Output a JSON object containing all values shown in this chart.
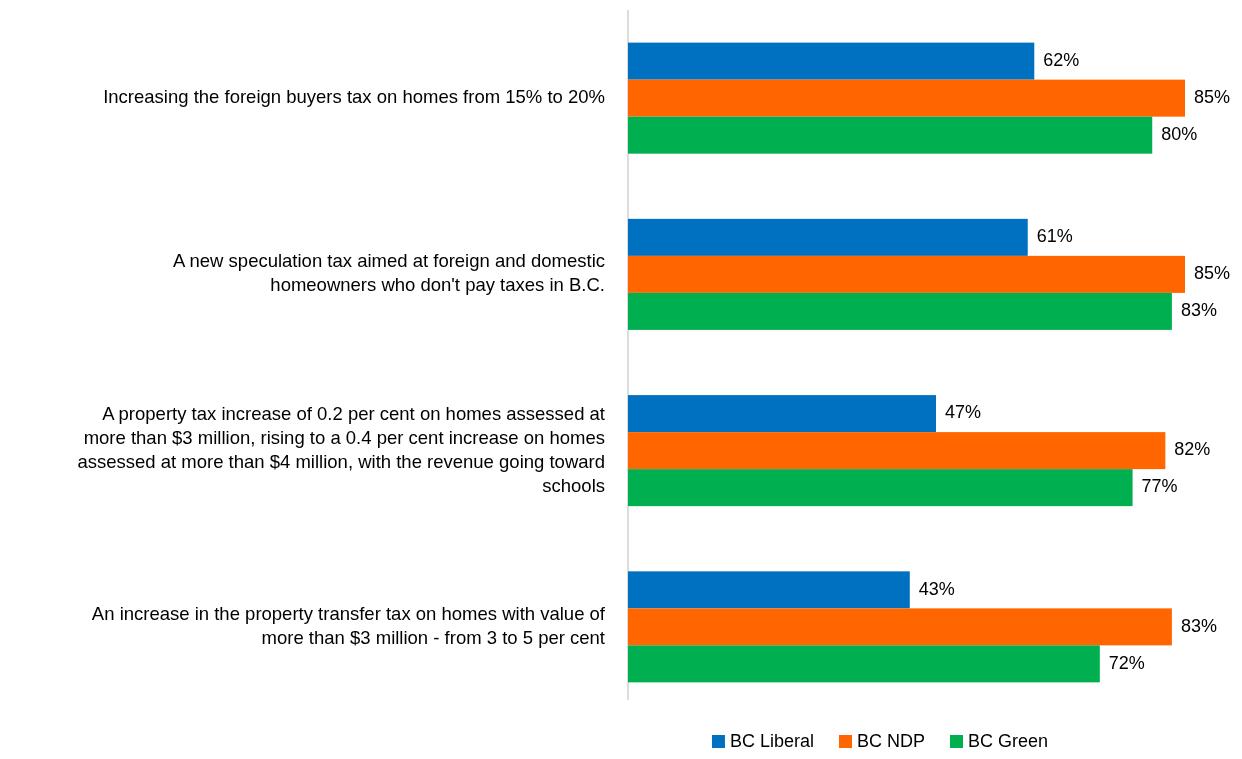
{
  "chart_data": {
    "type": "bar",
    "orientation": "horizontal",
    "categories": [
      "Increasing the foreign buyers tax on homes from 15% to 20%",
      "A new speculation tax aimed at foreign and domestic homeowners who don't pay taxes in B.C.",
      "A property tax increase of 0.2 per cent on homes assessed at more than $3 million, rising to a 0.4 per cent increase on homes assessed at more than $4 million, with the revenue going toward schools",
      "An increase in the property transfer tax on homes with value of more than $3 million - from 3 to 5 per cent"
    ],
    "series": [
      {
        "name": "BC Liberal",
        "color": "#0070c0",
        "values": [
          62,
          61,
          47,
          43
        ],
        "value_labels": [
          "62%",
          "61%",
          "47%",
          "43%"
        ]
      },
      {
        "name": "BC NDP",
        "color": "#ff6600",
        "values": [
          85,
          85,
          82,
          83
        ],
        "value_labels": [
          "85%",
          "85%",
          "82%",
          "83%"
        ]
      },
      {
        "name": "BC Green",
        "color": "#00b050",
        "values": [
          80,
          83,
          77,
          72
        ],
        "value_labels": [
          "80%",
          "83%",
          "77%",
          "72%"
        ]
      }
    ],
    "legend": "bottom",
    "tick_labels": "y"
  }
}
